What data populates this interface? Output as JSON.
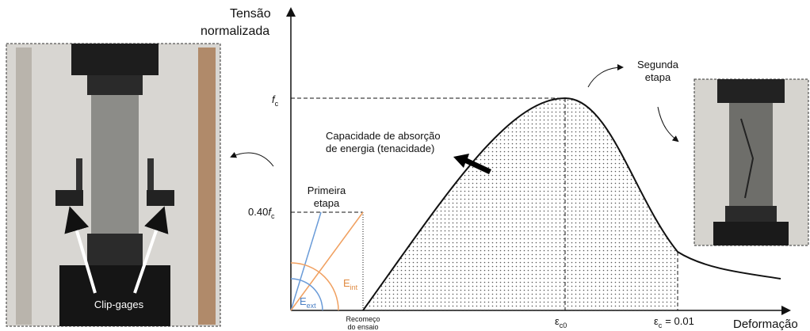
{
  "y_axis_label": [
    "Tensão",
    "normalizada"
  ],
  "x_axis_label": "Deformação",
  "fc_label": {
    "main": "f",
    "sub": "c"
  },
  "fc40_label": {
    "prefix": "0.40",
    "main": "f",
    "sub": "c"
  },
  "energy_label": [
    "Capacidade de absorção",
    "de energia (tenacidade)"
  ],
  "stage1_label": [
    "Primeira",
    "etapa"
  ],
  "stage2_label": [
    "Segunda",
    "etapa"
  ],
  "e_ext_label": {
    "main": "E",
    "sub": "ext"
  },
  "e_int_label": {
    "main": "E",
    "sub": "int"
  },
  "restart_label": [
    "Recomeço",
    "do ensaio"
  ],
  "eps_c0_label": {
    "main": "ε",
    "sub": "c0"
  },
  "eps_c_label": {
    "main": "ε",
    "sub": "c",
    "suffix": "= 0.01"
  },
  "clip_gages_label": "Clip-gages"
}
